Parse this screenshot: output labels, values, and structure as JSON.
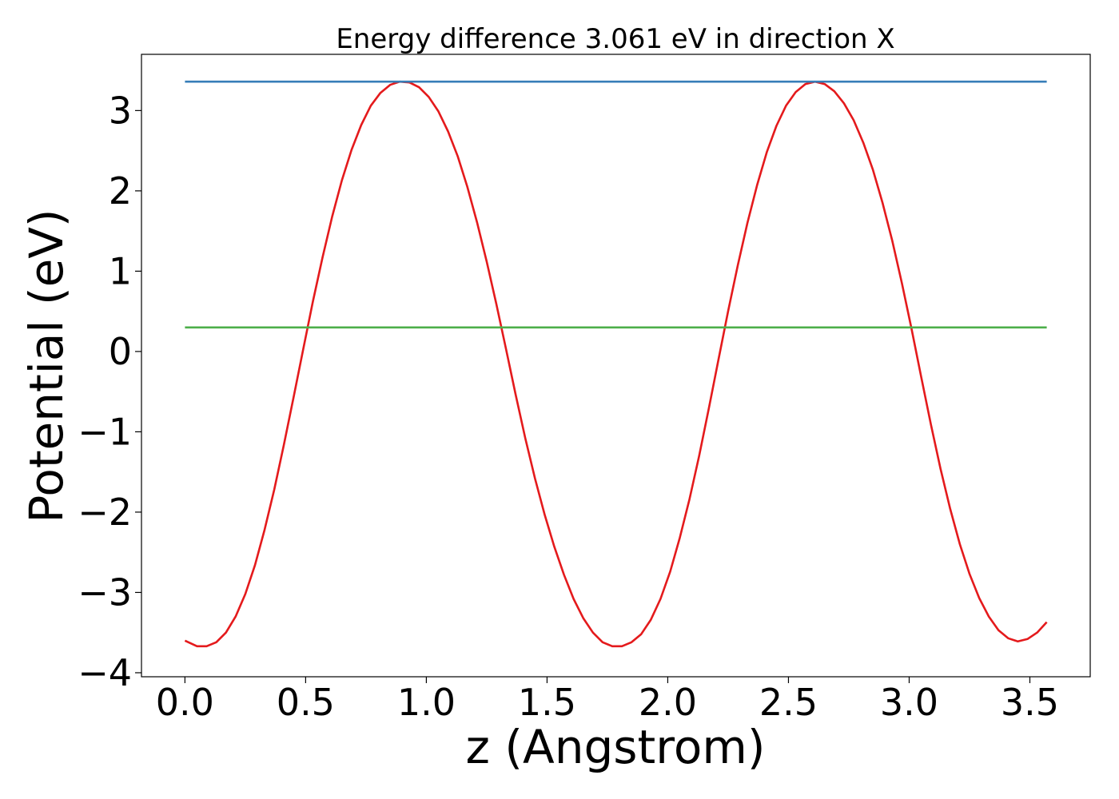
{
  "chart_data": {
    "type": "line",
    "title": "Energy difference 3.061 eV in direction X",
    "xlabel": "z (Angstrom)",
    "ylabel": "Potential (eV)",
    "xlim": [
      -0.18,
      3.75
    ],
    "ylim": [
      -4.05,
      3.7
    ],
    "x_ticks": [
      0.0,
      0.5,
      1.0,
      1.5,
      2.0,
      2.5,
      3.0,
      3.5
    ],
    "x_tick_labels": [
      "0.0",
      "0.5",
      "1.0",
      "1.5",
      "2.0",
      "2.5",
      "3.0",
      "3.5"
    ],
    "y_ticks": [
      -4,
      -3,
      -2,
      -1,
      0,
      1,
      2,
      3
    ],
    "y_tick_labels": [
      "−4",
      "−3",
      "−2",
      "−1",
      "0",
      "1",
      "2",
      "3"
    ],
    "grid": false,
    "series": [
      {
        "color": "#e41a1c",
        "x": [
          0.0,
          0.05,
          0.09,
          0.13,
          0.17,
          0.21,
          0.25,
          0.29,
          0.33,
          0.37,
          0.41,
          0.45,
          0.49,
          0.53,
          0.57,
          0.61,
          0.65,
          0.69,
          0.73,
          0.77,
          0.81,
          0.85,
          0.89,
          0.93,
          0.97,
          1.01,
          1.05,
          1.09,
          1.13,
          1.17,
          1.21,
          1.25,
          1.29,
          1.33,
          1.37,
          1.41,
          1.45,
          1.49,
          1.53,
          1.57,
          1.61,
          1.65,
          1.69,
          1.73,
          1.77,
          1.81,
          1.85,
          1.89,
          1.93,
          1.97,
          2.01,
          2.05,
          2.09,
          2.13,
          2.17,
          2.21,
          2.25,
          2.29,
          2.33,
          2.37,
          2.41,
          2.45,
          2.49,
          2.53,
          2.57,
          2.61,
          2.65,
          2.69,
          2.73,
          2.77,
          2.81,
          2.85,
          2.89,
          2.93,
          2.97,
          3.01,
          3.05,
          3.09,
          3.13,
          3.17,
          3.21,
          3.25,
          3.29,
          3.33,
          3.37,
          3.41,
          3.45,
          3.49,
          3.53,
          3.57
        ],
        "y": [
          -3.6,
          -3.67,
          -3.67,
          -3.62,
          -3.5,
          -3.3,
          -3.02,
          -2.66,
          -2.22,
          -1.72,
          -1.16,
          -0.57,
          0.03,
          0.62,
          1.17,
          1.68,
          2.13,
          2.51,
          2.82,
          3.06,
          3.22,
          3.32,
          3.36,
          3.35,
          3.29,
          3.17,
          2.99,
          2.74,
          2.43,
          2.05,
          1.61,
          1.12,
          0.59,
          0.03,
          -0.54,
          -1.08,
          -1.58,
          -2.03,
          -2.43,
          -2.78,
          -3.08,
          -3.32,
          -3.5,
          -3.62,
          -3.67,
          -3.67,
          -3.62,
          -3.52,
          -3.34,
          -3.08,
          -2.74,
          -2.32,
          -1.84,
          -1.3,
          -0.71,
          -0.1,
          0.5,
          1.07,
          1.6,
          2.07,
          2.48,
          2.81,
          3.06,
          3.23,
          3.33,
          3.36,
          3.33,
          3.24,
          3.09,
          2.88,
          2.6,
          2.26,
          1.85,
          1.38,
          0.85,
          0.28,
          -0.32,
          -0.91,
          -1.46,
          -1.96,
          -2.4,
          -2.77,
          -3.07,
          -3.3,
          -3.47,
          -3.57,
          -3.61,
          -3.58,
          -3.5,
          -3.37
        ]
      },
      {
        "color": "#377eb8",
        "x": [
          0.0,
          3.57
        ],
        "y": [
          3.36,
          3.36
        ]
      },
      {
        "color": "#4daf4a",
        "x": [
          0.0,
          3.57
        ],
        "y": [
          0.3,
          0.3
        ]
      }
    ]
  }
}
